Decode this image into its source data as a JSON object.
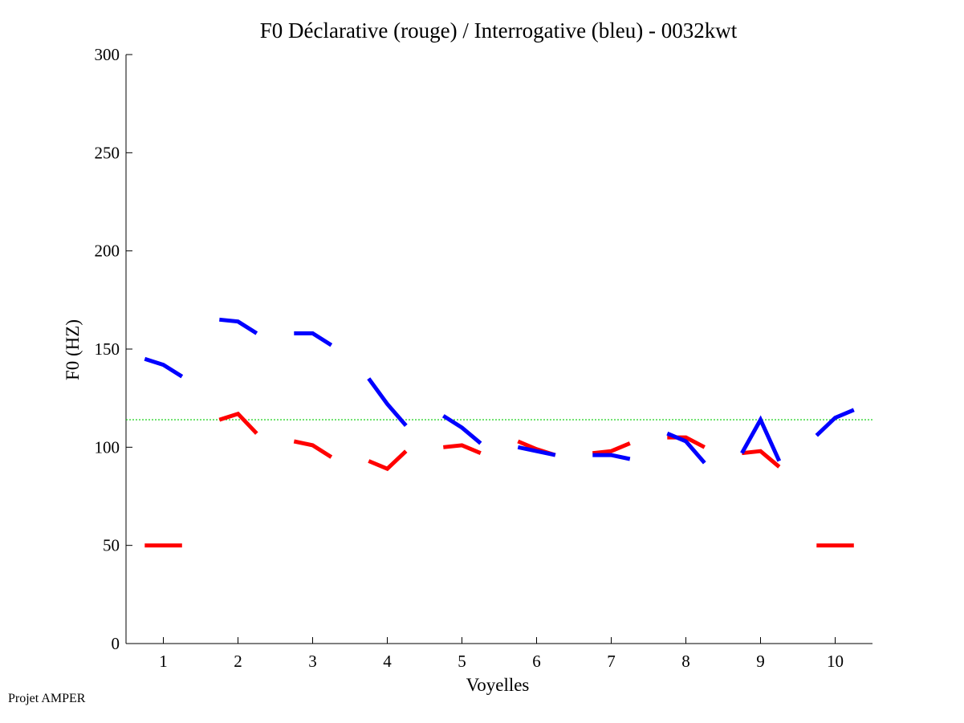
{
  "chart_data": {
    "type": "line",
    "title": "F0 Déclarative (rouge) / Interrogative (bleu) - 0032kwt",
    "xlabel": "Voyelles",
    "ylabel": "F0 (HZ)",
    "xlim": [
      0.5,
      10.5
    ],
    "ylim": [
      0,
      300
    ],
    "xticks": [
      1,
      2,
      3,
      4,
      5,
      6,
      7,
      8,
      9,
      10
    ],
    "yticks": [
      0,
      50,
      100,
      150,
      200,
      250,
      300
    ],
    "grid": false,
    "reference_line": {
      "y": 114,
      "color": "#00cc00",
      "style": "dotted"
    },
    "series": [
      {
        "color": "#ff0000",
        "segments": [
          {
            "x": [
              0.75,
              1.0,
              1.25
            ],
            "y": [
              50,
              50,
              50
            ]
          },
          {
            "x": [
              1.75,
              2.0,
              2.25
            ],
            "y": [
              114,
              117,
              107
            ]
          },
          {
            "x": [
              2.75,
              3.0,
              3.25
            ],
            "y": [
              103,
              101,
              95
            ]
          },
          {
            "x": [
              3.75,
              4.0,
              4.25
            ],
            "y": [
              93,
              89,
              98
            ]
          },
          {
            "x": [
              4.75,
              5.0,
              5.25
            ],
            "y": [
              100,
              101,
              97
            ]
          },
          {
            "x": [
              5.75,
              6.0,
              6.25
            ],
            "y": [
              103,
              99,
              96
            ]
          },
          {
            "x": [
              6.75,
              7.0,
              7.25
            ],
            "y": [
              97,
              98,
              102
            ]
          },
          {
            "x": [
              7.75,
              8.0,
              8.25
            ],
            "y": [
              105,
              105,
              100
            ]
          },
          {
            "x": [
              8.75,
              9.0,
              9.25
            ],
            "y": [
              97,
              98,
              90
            ]
          },
          {
            "x": [
              9.75,
              10.0,
              10.25
            ],
            "y": [
              50,
              50,
              50
            ]
          }
        ]
      },
      {
        "color": "#0000ff",
        "segments": [
          {
            "x": [
              0.75,
              1.0,
              1.25
            ],
            "y": [
              145,
              142,
              136
            ]
          },
          {
            "x": [
              1.75,
              2.0,
              2.25
            ],
            "y": [
              165,
              164,
              158
            ]
          },
          {
            "x": [
              2.75,
              3.0,
              3.25
            ],
            "y": [
              158,
              158,
              152
            ]
          },
          {
            "x": [
              3.75,
              4.0,
              4.25
            ],
            "y": [
              135,
              122,
              111
            ]
          },
          {
            "x": [
              4.75,
              5.0,
              5.25
            ],
            "y": [
              116,
              110,
              102
            ]
          },
          {
            "x": [
              5.75,
              6.0,
              6.25
            ],
            "y": [
              100,
              98,
              96
            ]
          },
          {
            "x": [
              6.75,
              7.0,
              7.25
            ],
            "y": [
              96,
              96,
              94
            ]
          },
          {
            "x": [
              7.75,
              8.0,
              8.25
            ],
            "y": [
              107,
              103,
              92
            ]
          },
          {
            "x": [
              8.75,
              9.0,
              9.25
            ],
            "y": [
              97,
              114,
              93
            ]
          },
          {
            "x": [
              9.75,
              10.0,
              10.25
            ],
            "y": [
              106,
              115,
              119
            ]
          }
        ]
      }
    ]
  },
  "footer": {
    "label": "Projet AMPER"
  }
}
